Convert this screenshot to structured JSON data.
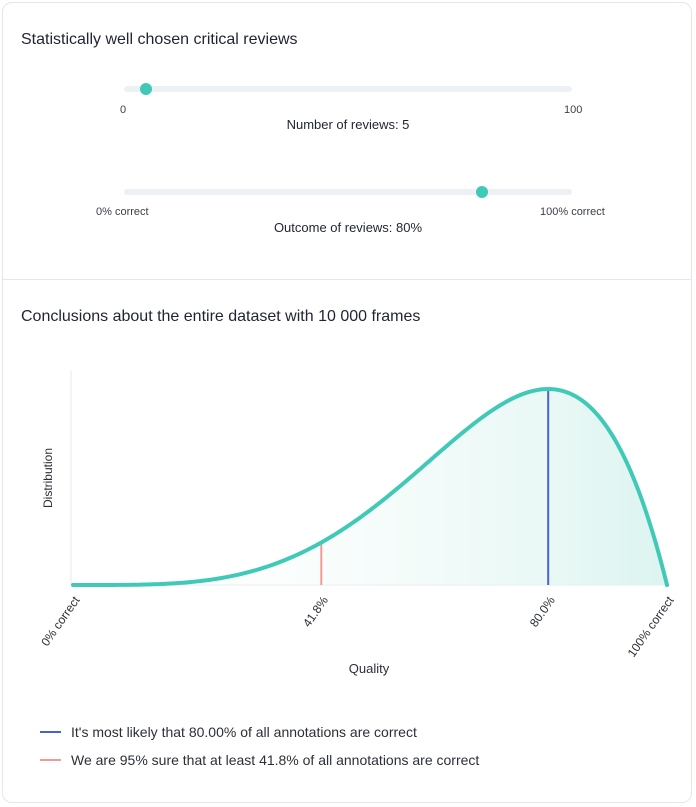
{
  "section1": {
    "title": "Statistically well chosen critical reviews"
  },
  "reviews_slider": {
    "min_label": "0",
    "max_label": "100",
    "value": 5,
    "min": 0,
    "max": 100,
    "caption": "Number of reviews: 5"
  },
  "outcome_slider": {
    "min_label": "0% correct",
    "max_label": "100% correct",
    "value": 80,
    "min": 0,
    "max": 100,
    "caption": "Outcome of reviews: 80%"
  },
  "section2": {
    "title": "Conclusions about the entire dataset with 10 000 frames"
  },
  "chart_data": {
    "type": "area",
    "xlabel": "Quality",
    "ylabel": "Distribution",
    "xlim": [
      0,
      100
    ],
    "x_tick_labels": [
      "0% correct",
      "41.8%",
      "80.0%",
      "100% correct"
    ],
    "x_ticks": [
      0,
      41.8,
      80.0,
      100
    ],
    "markers": [
      {
        "x": 80.0,
        "color": "#4a5fd6"
      },
      {
        "x": 41.8,
        "color": "#f39a94"
      }
    ],
    "series": [
      {
        "distribution": "beta",
        "alpha": 5,
        "beta": 2,
        "line_color": "#41c9b7",
        "fill_color": "#e6f7f4"
      }
    ],
    "grid": false
  },
  "legend": {
    "items": [
      {
        "label": "It's most likely that 80.00% of all annotations are correct",
        "color": "#4a5fd6"
      },
      {
        "label": "We are 95% sure that at least 41.8% of all annotations are correct",
        "color": "#f39a94"
      }
    ]
  }
}
